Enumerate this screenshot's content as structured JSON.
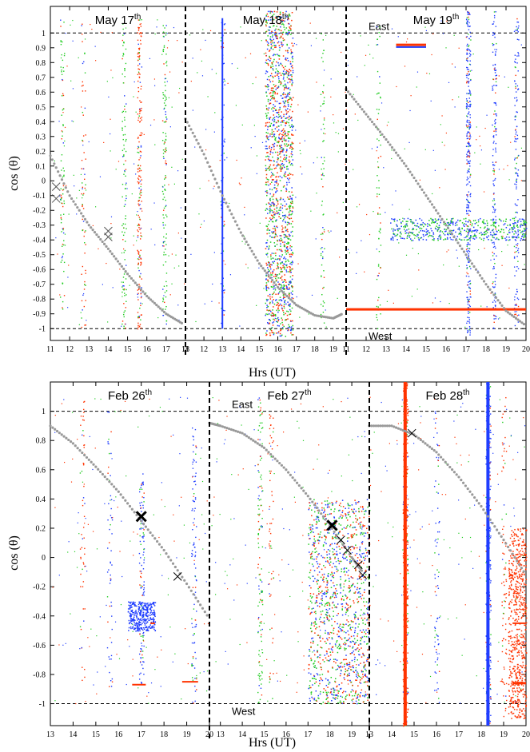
{
  "chart_data": [
    {
      "type": "scatter",
      "xlabel": "Hrs (UT)",
      "ylabel": "cos (θ)",
      "ylim": [
        -1.08,
        1.18
      ],
      "y_ticks": [
        1,
        0.9,
        0.8,
        0.7,
        0.6,
        0.5,
        0.4,
        0.3,
        0.2,
        0.1,
        0,
        -0.1,
        -0.2,
        -0.3,
        -0.4,
        -0.5,
        -0.6,
        -0.7,
        -0.8,
        -0.9,
        -1
      ],
      "y_tick_labels": [
        "1",
        "0.9",
        "0.8",
        "0.7",
        "0.6",
        "0.5",
        "0.4",
        "0.3",
        "0.2",
        "0.1",
        "0",
        "-0.1",
        "-0.2",
        "-0.3",
        "-0.4",
        "-0.5",
        "-0.6",
        "-0.7",
        "-0.8",
        "-0.9",
        "-1"
      ],
      "reference_lines": [
        {
          "y": 1,
          "label": "East",
          "label_segment": 2
        },
        {
          "y": -1,
          "label": "West",
          "label_segment": 2
        }
      ],
      "series_colors": {
        "blue": "#1f3dff",
        "green": "#22cc22",
        "red": "#ff3300",
        "model": "#999999",
        "marker": "#555555"
      },
      "segments": [
        {
          "title": "May 17",
          "title_sup": "th",
          "xlim": [
            11,
            18
          ],
          "x_ticks": [
            11,
            12,
            13,
            14,
            15,
            16,
            17,
            18
          ],
          "x_tick_labels": [
            "11",
            "12",
            "13",
            "14",
            "15",
            "16",
            "17",
            "18"
          ],
          "model_curve": {
            "x": [
              11.0,
              12.0,
              13.0,
              14.0,
              15.0,
              16.0,
              17.0,
              17.9
            ],
            "y": [
              0.17,
              -0.1,
              -0.3,
              -0.46,
              -0.63,
              -0.78,
              -0.9,
              -0.97
            ]
          },
          "crosses": {
            "x": [
              11.3,
              11.3,
              14.0,
              14.0
            ],
            "y": [
              -0.04,
              -0.12,
              -0.34,
              -0.38
            ],
            "size": "small"
          },
          "streaks": [
            {
              "x": 11.6,
              "y_range": [
                -0.9,
                1.1
              ],
              "color": "green",
              "density": 0.6
            },
            {
              "x": 12.7,
              "y_range": [
                -1.0,
                1.1
              ],
              "color": "red",
              "density": 0.5
            },
            {
              "x": 14.8,
              "y_range": [
                -1.0,
                1.1
              ],
              "color": "green",
              "density": 0.8
            },
            {
              "x": 15.6,
              "y_range": [
                -1.0,
                1.1
              ],
              "color": "red",
              "density": 1.5
            },
            {
              "x": 16.9,
              "y_range": [
                -1.0,
                1.1
              ],
              "color": "green",
              "density": 0.9
            }
          ],
          "clusters": [],
          "lines": []
        },
        {
          "title": "May 18",
          "title_sup": "th",
          "xlim": [
            11,
            19.7
          ],
          "x_ticks": [
            11,
            12,
            13,
            14,
            15,
            16,
            17,
            18,
            19
          ],
          "x_tick_labels": [
            "11",
            "12",
            "13",
            "14",
            "15",
            "16",
            "17",
            "18",
            "19"
          ],
          "model_curve": {
            "x": [
              11.0,
              12.0,
              13.0,
              14.0,
              15.0,
              16.0,
              17.0,
              18.0,
              19.0,
              19.5
            ],
            "y": [
              0.42,
              0.18,
              -0.1,
              -0.35,
              -0.56,
              -0.72,
              -0.84,
              -0.91,
              -0.93,
              -0.9
            ]
          },
          "crosses": {
            "x": [],
            "y": [],
            "size": "small"
          },
          "streaks": [
            {
              "x": 13.0,
              "y_range": [
                -1.0,
                1.1
              ],
              "color": "blue",
              "density": 0.5
            },
            {
              "x": 18.4,
              "y_range": [
                -1.0,
                1.0
              ],
              "color": "green",
              "density": 0.5
            }
          ],
          "clusters": [
            {
              "x_range": [
                15.3,
                16.8
              ],
              "y_range": [
                -1.05,
                1.15
              ],
              "colors": [
                "blue",
                "green",
                "red"
              ],
              "density": 3.5
            }
          ],
          "lines": [
            {
              "x": [
                13.0,
                13.0
              ],
              "y": [
                -1.0,
                1.1
              ],
              "color": "blue",
              "width": 2
            }
          ]
        },
        {
          "title": "May 19",
          "title_sup": "th",
          "xlim": [
            11,
            20
          ],
          "x_ticks": [
            11,
            12,
            13,
            14,
            15,
            16,
            17,
            18,
            19,
            20
          ],
          "x_tick_labels": [
            "11",
            "12",
            "13",
            "14",
            "15",
            "16",
            "17",
            "18",
            "19",
            "20"
          ],
          "model_curve": {
            "x": [
              11.0,
              12.0,
              13.0,
              14.0,
              15.0,
              16.0,
              17.0,
              18.0,
              19.0,
              20.0
            ],
            "y": [
              0.62,
              0.45,
              0.28,
              0.1,
              -0.1,
              -0.3,
              -0.5,
              -0.7,
              -0.88,
              -0.98
            ]
          },
          "crosses": {
            "x": [],
            "y": [],
            "size": "small"
          },
          "streaks": [
            {
              "x": 12.6,
              "y_range": [
                -1.0,
                1.1
              ],
              "color": "green",
              "density": 0.5
            },
            {
              "x": 17.1,
              "y_range": [
                -1.05,
                1.15
              ],
              "color": "blue",
              "density": 2.5
            },
            {
              "x": 18.4,
              "y_range": [
                -1.0,
                1.15
              ],
              "color": "blue",
              "density": 1.2
            },
            {
              "x": 19.5,
              "y_range": [
                -1.0,
                1.1
              ],
              "color": "blue",
              "density": 1.0
            }
          ],
          "clusters": [
            {
              "x_range": [
                13.2,
                20.0
              ],
              "y_range": [
                -0.4,
                -0.25
              ],
              "colors": [
                "blue",
                "green"
              ],
              "density": 1.2
            }
          ],
          "lines": [
            {
              "x": [
                13.5,
                15.0
              ],
              "y": [
                0.92,
                0.92
              ],
              "color": "red",
              "width": 3
            },
            {
              "x": [
                13.5,
                15.0
              ],
              "y": [
                0.905,
                0.905
              ],
              "color": "blue",
              "width": 2
            },
            {
              "x": [
                11.0,
                20.0
              ],
              "y": [
                -0.87,
                -0.87
              ],
              "color": "red",
              "width": 3
            }
          ]
        }
      ]
    },
    {
      "type": "scatter",
      "xlabel": "Hrs (UT)",
      "ylabel": "cos (θ)",
      "ylim": [
        -1.15,
        1.2
      ],
      "y_ticks": [
        1,
        0.8,
        0.6,
        0.4,
        0.2,
        0,
        -0.2,
        -0.4,
        -0.6,
        -0.8,
        -1
      ],
      "y_tick_labels": [
        "1",
        "0.8",
        "0.6",
        "0.4",
        "0.2",
        "0",
        "-0.2",
        "-0.4",
        "-0.6",
        "-0.8",
        "-1"
      ],
      "reference_lines": [
        {
          "y": 1,
          "label": "East",
          "label_segment": 1
        },
        {
          "y": -1,
          "label": "West",
          "label_segment": 1
        }
      ],
      "series_colors": {
        "blue": "#1f3dff",
        "green": "#22cc22",
        "red": "#ff3300",
        "model": "#999999",
        "marker": "#000000"
      },
      "segments": [
        {
          "title": "Feb 26",
          "title_sup": "th",
          "xlim": [
            13,
            20
          ],
          "x_ticks": [
            13,
            14,
            15,
            16,
            17,
            18,
            19,
            20
          ],
          "x_tick_labels": [
            "13",
            "14",
            "15",
            "16",
            "17",
            "18",
            "19",
            "20"
          ],
          "model_curve": {
            "x": [
              13.0,
              14.0,
              15.0,
              16.0,
              17.0,
              18.0,
              19.0,
              20.0
            ],
            "y": [
              0.9,
              0.78,
              0.62,
              0.45,
              0.25,
              0.05,
              -0.18,
              -0.42
            ]
          },
          "crosses": {
            "x": [
              17.0,
              18.6
            ],
            "y": [
              0.28,
              -0.13
            ],
            "size": "mixed"
          },
          "streaks": [
            {
              "x": 14.4,
              "y_range": [
                -0.9,
                1.1
              ],
              "color": "red",
              "density": 0.4
            },
            {
              "x": 15.6,
              "y_range": [
                -0.9,
                1.0
              ],
              "color": "blue",
              "density": 0.4
            },
            {
              "x": 17.0,
              "y_range": [
                -0.9,
                0.6
              ],
              "color": "blue",
              "density": 0.9
            },
            {
              "x": 19.3,
              "y_range": [
                -1.0,
                0.9
              ],
              "color": "blue",
              "density": 0.7
            }
          ],
          "clusters": [
            {
              "x_range": [
                16.4,
                17.6
              ],
              "y_range": [
                -0.5,
                -0.3
              ],
              "colors": [
                "blue"
              ],
              "density": 0.8
            }
          ],
          "lines": [
            {
              "x": [
                16.6,
                17.2
              ],
              "y": [
                -0.87,
                -0.87
              ],
              "color": "red",
              "width": 2
            },
            {
              "x": [
                18.8,
                19.5
              ],
              "y": [
                -0.85,
                -0.85
              ],
              "color": "red",
              "width": 2
            },
            {
              "x": [
                17.4,
                17.6
              ],
              "y": [
                -0.45,
                -0.45
              ],
              "color": "red",
              "width": 2
            }
          ]
        },
        {
          "title": "Feb 27",
          "title_sup": "th",
          "xlim": [
            12.5,
            19.8
          ],
          "x_ticks": [
            13,
            14,
            15,
            16,
            17,
            18,
            19
          ],
          "x_tick_labels": [
            "13",
            "14",
            "15",
            "16",
            "17",
            "18",
            "19"
          ],
          "model_curve": {
            "x": [
              12.5,
              13.0,
              14.0,
              15.0,
              16.0,
              17.0,
              18.0,
              19.0,
              19.5
            ],
            "y": [
              0.92,
              0.9,
              0.85,
              0.75,
              0.6,
              0.42,
              0.22,
              0.0,
              -0.1
            ]
          },
          "crosses": {
            "x": [
              18.1,
              18.5,
              18.8,
              19.3,
              19.5
            ],
            "y": [
              0.22,
              0.12,
              0.05,
              -0.05,
              -0.12
            ],
            "size": "mixed"
          },
          "streaks": [
            {
              "x": 14.8,
              "y_range": [
                -1.0,
                1.1
              ],
              "color": "green",
              "density": 0.9
            },
            {
              "x": 15.3,
              "y_range": [
                -1.0,
                1.0
              ],
              "color": "red",
              "density": 0.4
            }
          ],
          "clusters": [
            {
              "x_range": [
                17.0,
                19.8
              ],
              "y_range": [
                -1.0,
                0.4
              ],
              "colors": [
                "blue",
                "green",
                "red"
              ],
              "density": 3.0
            }
          ],
          "lines": []
        },
        {
          "title": "Feb 28",
          "title_sup": "th",
          "xlim": [
            13,
            20
          ],
          "x_ticks": [
            13,
            14,
            15,
            16,
            17,
            18,
            19,
            20
          ],
          "x_tick_labels": [
            "13",
            "14",
            "15",
            "16",
            "17",
            "18",
            "19",
            "20"
          ],
          "model_curve": {
            "x": [
              13.0,
              14.0,
              15.0,
              16.0,
              17.0,
              18.0,
              19.0,
              20.0
            ],
            "y": [
              0.9,
              0.9,
              0.84,
              0.72,
              0.55,
              0.35,
              0.12,
              -0.12
            ]
          },
          "crosses": {
            "x": [
              14.9
            ],
            "y": [
              0.85
            ],
            "size": "small"
          },
          "streaks": [
            {
              "x": 14.6,
              "y_range": [
                -1.15,
                1.2
              ],
              "color": "red",
              "density": 2.5
            },
            {
              "x": 16.0,
              "y_range": [
                -1.0,
                1.0
              ],
              "color": "blue",
              "density": 0.5
            },
            {
              "x": 18.3,
              "y_range": [
                -1.15,
                1.2
              ],
              "color": "blue",
              "density": 2.0
            },
            {
              "x": 19.0,
              "y_range": [
                -1.1,
                1.1
              ],
              "color": "red",
              "density": 0.6
            }
          ],
          "clusters": [
            {
              "x_range": [
                19.2,
                20.0
              ],
              "y_range": [
                -1.1,
                0.2
              ],
              "colors": [
                "red"
              ],
              "density": 1.5
            }
          ],
          "lines": [
            {
              "x": [
                14.6,
                14.6
              ],
              "y": [
                -1.15,
                1.2
              ],
              "color": "red",
              "width": 4
            },
            {
              "x": [
                18.3,
                18.3
              ],
              "y": [
                -1.15,
                1.2
              ],
              "color": "blue",
              "width": 4
            },
            {
              "x": [
                19.4,
                20.0
              ],
              "y": [
                -0.45,
                -0.45
              ],
              "color": "red",
              "width": 2
            },
            {
              "x": [
                19.4,
                20.0
              ],
              "y": [
                -0.86,
                -0.86
              ],
              "color": "red",
              "width": 3
            }
          ]
        }
      ]
    }
  ]
}
